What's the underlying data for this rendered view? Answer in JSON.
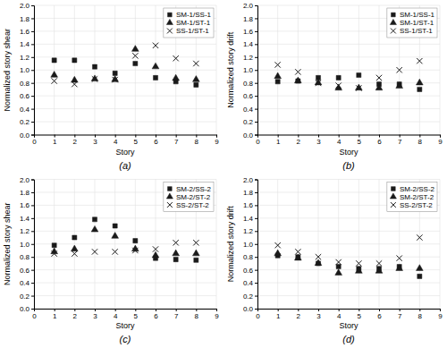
{
  "chart_data": [
    {
      "type": "scatter",
      "title": "(a)",
      "x_label": "Story",
      "y_label": "Normalized story shear",
      "x": [
        1,
        2,
        3,
        4,
        5,
        6,
        7,
        8
      ],
      "series": [
        {
          "name": "SM-1/SS-1",
          "marker": "square",
          "color": "#1a1a1a",
          "values": [
            1.15,
            1.15,
            1.05,
            0.95,
            1.1,
            0.88,
            0.82,
            0.77
          ]
        },
        {
          "name": "SM-1/ST-1",
          "marker": "triangle",
          "color": "#1a1a1a",
          "values": [
            0.92,
            0.84,
            0.86,
            0.85,
            1.32,
            1.05,
            0.87,
            0.85
          ]
        },
        {
          "name": "SS-1/ST-1",
          "marker": "x",
          "color": "#1a1a1a",
          "values": [
            0.83,
            0.78,
            0.86,
            0.85,
            1.22,
            1.38,
            1.18,
            1.1
          ]
        }
      ],
      "xlim": [
        0,
        9
      ],
      "ylim": [
        0,
        2
      ],
      "xticks": [
        0,
        1,
        2,
        3,
        4,
        5,
        6,
        7,
        8,
        9
      ],
      "yticks": [
        {
          "value": 0,
          "label": "0.0"
        },
        0.2,
        0.4,
        0.6,
        0.8,
        {
          "value": 1.0,
          "label": "1.0"
        },
        1.2,
        1.4,
        1.6,
        1.8,
        {
          "value": 2.0,
          "label": "2.0"
        }
      ],
      "grid": true,
      "legend": "upper right"
    },
    {
      "type": "scatter",
      "title": "(b)",
      "x_label": "Story",
      "y_label": "Normalized story drift",
      "x": [
        1,
        2,
        3,
        4,
        5,
        6,
        7,
        8
      ],
      "series": [
        {
          "name": "SM-1/SS-1",
          "marker": "square",
          "color": "#1a1a1a",
          "values": [
            0.82,
            0.83,
            0.88,
            0.88,
            0.92,
            0.78,
            0.78,
            0.7
          ]
        },
        {
          "name": "SM-1/ST-1",
          "marker": "triangle",
          "color": "#1a1a1a",
          "values": [
            0.9,
            0.83,
            0.8,
            0.72,
            0.72,
            0.72,
            0.75,
            0.8
          ]
        },
        {
          "name": "SS-1/ST-1",
          "marker": "x",
          "color": "#1a1a1a",
          "values": [
            1.08,
            0.97,
            0.8,
            0.76,
            0.72,
            0.88,
            1.0,
            1.14
          ]
        }
      ],
      "xlim": [
        0,
        9
      ],
      "ylim": [
        0,
        2
      ],
      "xticks": [
        0,
        1,
        2,
        3,
        4,
        5,
        6,
        7,
        8,
        9
      ],
      "yticks": [
        {
          "value": 0,
          "label": "0.0"
        },
        0.2,
        0.4,
        0.6,
        0.8,
        {
          "value": 1.0,
          "label": "1.0"
        },
        1.2,
        1.4,
        1.6,
        1.8,
        {
          "value": 2.0,
          "label": "2.0"
        }
      ],
      "grid": true,
      "legend": "upper right"
    },
    {
      "type": "scatter",
      "title": "(c)",
      "x_label": "Story",
      "y_label": "Normalized story shear",
      "x": [
        1,
        2,
        3,
        4,
        5,
        6,
        7,
        8
      ],
      "series": [
        {
          "name": "SM-2/SS-2",
          "marker": "square",
          "color": "#1a1a1a",
          "values": [
            0.98,
            1.1,
            1.38,
            1.28,
            1.05,
            0.78,
            0.76,
            0.75
          ]
        },
        {
          "name": "SM-2/ST-2",
          "marker": "triangle",
          "color": "#1a1a1a",
          "values": [
            0.88,
            0.92,
            1.22,
            1.12,
            0.92,
            0.82,
            0.85,
            0.85
          ]
        },
        {
          "name": "SS-2/ST-2",
          "marker": "x",
          "color": "#1a1a1a",
          "values": [
            0.85,
            0.85,
            0.88,
            0.88,
            0.9,
            0.92,
            1.02,
            1.02
          ]
        }
      ],
      "xlim": [
        0,
        9
      ],
      "ylim": [
        0,
        2
      ],
      "xticks": [
        0,
        1,
        2,
        3,
        4,
        5,
        6,
        7,
        8,
        9
      ],
      "yticks": [
        {
          "value": 0,
          "label": "0.0"
        },
        0.2,
        0.4,
        0.6,
        0.8,
        {
          "value": 1.0,
          "label": "1.0"
        },
        1.2,
        1.4,
        1.6,
        1.8,
        {
          "value": 2.0,
          "label": "2.0"
        }
      ],
      "grid": true,
      "legend": "upper right"
    },
    {
      "type": "scatter",
      "title": "(d)",
      "x_label": "Story",
      "y_label": "Normalized story drift",
      "x": [
        1,
        2,
        3,
        4,
        5,
        6,
        7,
        8
      ],
      "series": [
        {
          "name": "SM-2/SS-2",
          "marker": "square",
          "color": "#1a1a1a",
          "values": [
            0.82,
            0.8,
            0.7,
            0.65,
            0.62,
            0.62,
            0.65,
            0.5
          ]
        },
        {
          "name": "SM-2/ST-2",
          "marker": "triangle",
          "color": "#1a1a1a",
          "values": [
            0.85,
            0.78,
            0.7,
            0.55,
            0.58,
            0.58,
            0.62,
            0.62
          ]
        },
        {
          "name": "SS-2/ST-2",
          "marker": "x",
          "color": "#1a1a1a",
          "values": [
            0.98,
            0.88,
            0.8,
            0.72,
            0.7,
            0.7,
            0.78,
            1.1
          ]
        }
      ],
      "xlim": [
        0,
        9
      ],
      "ylim": [
        0,
        2
      ],
      "xticks": [
        0,
        1,
        2,
        3,
        4,
        5,
        6,
        7,
        8,
        9
      ],
      "yticks": [
        {
          "value": 0,
          "label": "0.0"
        },
        0.2,
        0.4,
        0.6,
        0.8,
        {
          "value": 1.0,
          "label": "1.0"
        },
        1.2,
        1.4,
        1.6,
        1.8,
        {
          "value": 2.0,
          "label": "2.0"
        }
      ],
      "grid": true,
      "legend": "upper right"
    }
  ]
}
